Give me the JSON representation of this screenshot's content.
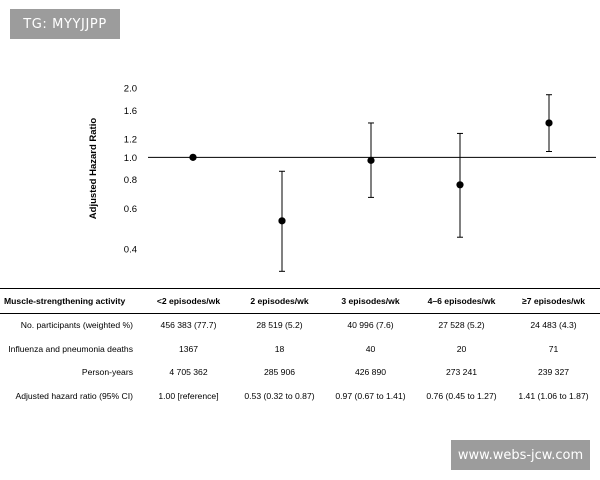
{
  "watermarks": {
    "top": "TG: MYYJJPP",
    "bottom": "www.webs-jcw.com"
  },
  "chart_data": {
    "type": "scatter",
    "title": "",
    "xlabel": "",
    "ylabel": "Adjusted Hazard Ratio",
    "yscale": "log",
    "ylim": [
      0.3,
      2.1
    ],
    "yticks": [
      2.0,
      1.6,
      1.2,
      1.0,
      0.8,
      0.6,
      0.4
    ],
    "ytick_labels": [
      "2.0",
      "1.6",
      "1.2",
      "1.0",
      "0.8",
      "0.6",
      "0.4"
    ],
    "reference_line": 1.0,
    "categories": [
      "<2 episodes/wk",
      "2 episodes/wk",
      "3 episodes/wk",
      "4–6 episodes/wk",
      "≥7 episodes/wk"
    ],
    "series": [
      {
        "name": "Adjusted hazard ratio",
        "values": [
          1.0,
          0.53,
          0.97,
          0.76,
          1.41
        ],
        "lower": [
          null,
          0.32,
          0.67,
          0.45,
          1.06
        ],
        "upper": [
          null,
          0.87,
          1.41,
          1.27,
          1.87
        ]
      }
    ]
  },
  "table": {
    "header_label": "Muscle-strengthening activity",
    "columns": [
      "<2 episodes/wk",
      "2 episodes/wk",
      "3 episodes/wk",
      "4–6 episodes/wk",
      "≥7 episodes/wk"
    ],
    "rows": [
      {
        "label": "No. participants (weighted %)",
        "cells": [
          "456 383 (77.7)",
          "28 519 (5.2)",
          "40 996 (7.6)",
          "27 528 (5.2)",
          "24 483 (4.3)"
        ]
      },
      {
        "label": "Influenza and pneumonia deaths",
        "cells": [
          "1367",
          "18",
          "40",
          "20",
          "71"
        ]
      },
      {
        "label": "Person-years",
        "cells": [
          "4 705 362",
          "285 906",
          "426 890",
          "273 241",
          "239 327"
        ]
      },
      {
        "label": "Adjusted hazard ratio (95% CI)",
        "cells": [
          "1.00 [reference]",
          "0.53 (0.32 to 0.87)",
          "0.97 (0.67 to 1.41)",
          "0.76 (0.45 to 1.27)",
          "1.41 (1.06 to 1.87)"
        ]
      }
    ]
  },
  "colors": {
    "marker": "#000000",
    "watermark_bg": "#9c9c9c",
    "watermark_text": "#ffffff"
  }
}
